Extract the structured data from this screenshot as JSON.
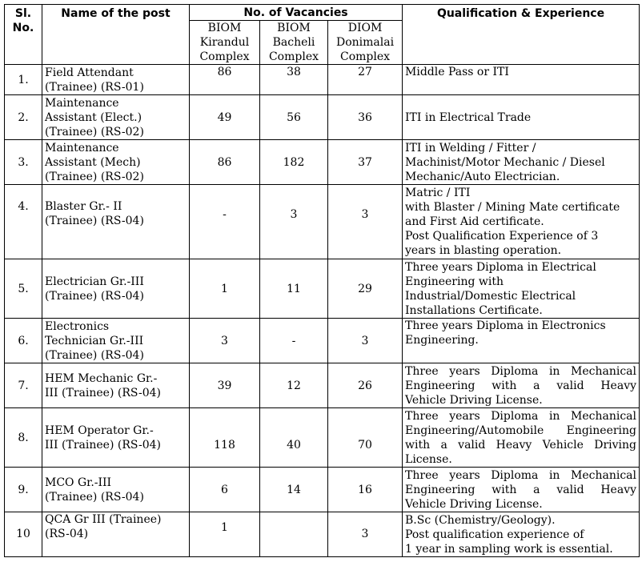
{
  "header": {
    "sl_line1": "Sl.",
    "sl_line2": "No.",
    "post": "Name of the post",
    "vacancies": "No. of Vacancies",
    "qualification": "Qualification & Experience",
    "complexes": [
      [
        "BIOM",
        "Kirandul",
        "Complex"
      ],
      [
        "BIOM",
        "Bacheli",
        "Complex"
      ],
      [
        "DIOM",
        "Donimalai",
        "Complex"
      ]
    ]
  },
  "rows": [
    {
      "sl": "1.",
      "post": [
        "Field Attendant",
        "(Trainee) (RS-01)"
      ],
      "kirandul": "86",
      "bacheli": "38",
      "donimalai": "27",
      "qualification": [
        "Middle Pass or ITI"
      ]
    },
    {
      "sl": "2.",
      "post": [
        "Maintenance",
        "Assistant (Elect.)",
        "(Trainee) (RS-02)"
      ],
      "kirandul": "49",
      "bacheli": "56",
      "donimalai": "36",
      "qualification": [
        "ITI in Electrical Trade"
      ]
    },
    {
      "sl": "3.",
      "post": [
        "Maintenance",
        "Assistant (Mech)",
        "(Trainee) (RS-02)"
      ],
      "kirandul": "86",
      "bacheli": "182",
      "donimalai": "37",
      "qualification": [
        "ITI in Welding / Fitter /",
        "Machinist/Motor Mechanic / Diesel",
        "Mechanic/Auto Electrician."
      ]
    },
    {
      "sl": "4.",
      "post": [
        "Blaster Gr.- II",
        "(Trainee) (RS-04)"
      ],
      "kirandul": "-",
      "bacheli": "3",
      "donimalai": "3",
      "qualification": [
        "Matric / ITI",
        "with Blaster / Mining Mate certificate",
        "and First Aid certificate.",
        "Post Qualification Experience of 3",
        "years in blasting operation."
      ]
    },
    {
      "sl": "5.",
      "post": [
        "Electrician Gr.-III",
        "(Trainee) (RS-04)"
      ],
      "kirandul": "1",
      "bacheli": "11",
      "donimalai": "29",
      "qualification": [
        "Three years Diploma in Electrical",
        "Engineering with",
        "Industrial/Domestic Electrical",
        "Installations Certificate."
      ]
    },
    {
      "sl": "6.",
      "post": [
        "Electronics",
        "Technician Gr.-III",
        "(Trainee)  (RS-04)"
      ],
      "kirandul": "3",
      "bacheli": "-",
      "donimalai": "3",
      "qualification": [
        "Three years Diploma in Electronics",
        "Engineering."
      ]
    },
    {
      "sl": "7.",
      "post": [
        "HEM Mechanic Gr.-",
        "III (Trainee) (RS-04)"
      ],
      "kirandul": "39",
      "bacheli": "12",
      "donimalai": "26",
      "qualification": [
        "Three years Diploma in Mechanical",
        "Engineering with a valid Heavy",
        "Vehicle Driving License."
      ]
    },
    {
      "sl": "8.",
      "post": [
        "HEM Operator Gr.-",
        "III (Trainee) (RS-04)"
      ],
      "kirandul": "118",
      "bacheli": "40",
      "donimalai": "70",
      "qualification": [
        "Three years Diploma in Mechanical",
        "Engineering/Automobile Engineering",
        "with a valid Heavy Vehicle Driving",
        "License."
      ]
    },
    {
      "sl": "9.",
      "post": [
        "MCO Gr.-III",
        "(Trainee) (RS-04)"
      ],
      "kirandul": "6",
      "bacheli": "14",
      "donimalai": "16",
      "qualification": [
        "Three years Diploma in Mechanical",
        "Engineering with a valid Heavy",
        "Vehicle Driving License."
      ]
    },
    {
      "sl": "10",
      "post": [
        "QCA Gr III (Trainee)",
        "(RS-04)"
      ],
      "kirandul": "1",
      "bacheli": "",
      "donimalai": "3",
      "qualification": [
        "B.Sc (Chemistry/Geology).",
        "Post qualification experience of",
        "1 year in sampling work is essential."
      ]
    }
  ]
}
